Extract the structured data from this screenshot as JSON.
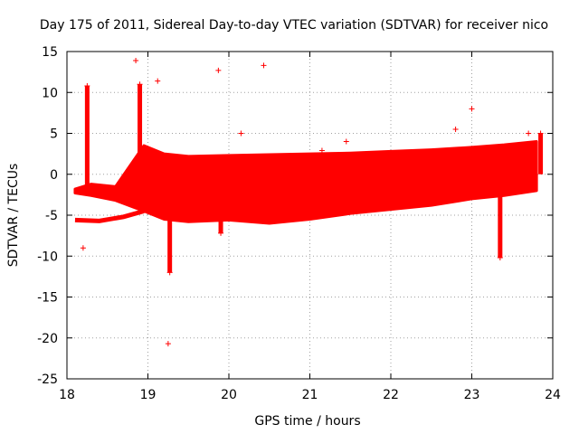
{
  "chart_data": {
    "type": "scatter",
    "title": "Day 175 of 2011, Sidereal Day-to-day VTEC variation (SDTVAR) for receiver nico",
    "xlabel": "GPS time / hours",
    "ylabel": "SDTVAR / TECUs",
    "xlim": [
      18,
      24
    ],
    "ylim": [
      -25,
      15
    ],
    "xticks": [
      "18",
      "19",
      "20",
      "21",
      "22",
      "23",
      "24"
    ],
    "yticks": [
      "15",
      "10",
      "5",
      "0",
      "-5",
      "-10",
      "-15",
      "-20",
      "-25"
    ],
    "grid": true,
    "marker": "+",
    "color": "#ff0000",
    "dense_band": {
      "x": [
        18.1,
        18.3,
        18.6,
        18.95,
        19.2,
        19.5,
        20.0,
        20.5,
        21.0,
        21.5,
        22.0,
        22.5,
        23.0,
        23.4,
        23.8
      ],
      "upper": [
        -1.8,
        -1.2,
        -1.5,
        3.5,
        2.5,
        2.2,
        2.3,
        2.4,
        2.5,
        2.6,
        2.8,
        3.0,
        3.3,
        3.6,
        4.0
      ],
      "lower": [
        -2.3,
        -2.6,
        -3.2,
        -4.5,
        -5.5,
        -5.8,
        -5.6,
        -6.0,
        -5.5,
        -4.8,
        -4.3,
        -3.8,
        -3.0,
        -2.6,
        -2.0
      ]
    },
    "lower_branch": {
      "x": [
        18.1,
        18.4,
        18.7,
        18.95
      ],
      "y": [
        -5.6,
        -5.7,
        -5.2,
        -4.5
      ]
    },
    "spikes": [
      {
        "x": 18.25,
        "from": -2.0,
        "to": 10.8
      },
      {
        "x": 18.9,
        "from": 2.0,
        "to": 11.0
      },
      {
        "x": 19.27,
        "from": -4.0,
        "to": -12.0
      },
      {
        "x": 19.9,
        "from": -3.0,
        "to": -7.2
      },
      {
        "x": 23.35,
        "from": 0.0,
        "to": -10.2
      },
      {
        "x": 23.85,
        "from": 0.0,
        "to": 5.0
      }
    ],
    "outliers": [
      {
        "x": 18.2,
        "y": -9.0
      },
      {
        "x": 18.85,
        "y": 13.9
      },
      {
        "x": 19.12,
        "y": 11.4
      },
      {
        "x": 19.25,
        "y": -20.7
      },
      {
        "x": 19.87,
        "y": 12.7
      },
      {
        "x": 20.15,
        "y": 5.0
      },
      {
        "x": 20.43,
        "y": 13.3
      },
      {
        "x": 21.15,
        "y": 2.9
      },
      {
        "x": 21.45,
        "y": 4.0
      },
      {
        "x": 22.8,
        "y": 5.5
      },
      {
        "x": 23.0,
        "y": 8.0
      },
      {
        "x": 23.7,
        "y": 5.0
      }
    ]
  }
}
